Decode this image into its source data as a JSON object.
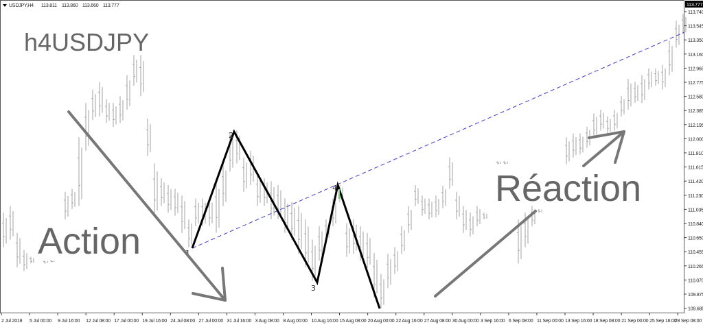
{
  "header": {
    "symbol": "USDJPY,H4",
    "open": "113.811",
    "high": "113.860",
    "low": "113.660",
    "close": "113.777"
  },
  "annotations": {
    "title": "h4USDJPY",
    "action": "Action",
    "reaction": "Réaction",
    "wave_labels": [
      "1",
      "2",
      "3",
      "4"
    ]
  },
  "colors": {
    "bars": "#a0a0a0",
    "zigzag": "#000000",
    "trendline": "#3a3acc",
    "arrows": "#777777",
    "price_tag": "#000000"
  },
  "chart_data": {
    "type": "bar",
    "title": "USDJPY,H4",
    "current_price": "113.777",
    "ylim": [
      109.685,
      113.777
    ],
    "y_ticks": [
      "113.740",
      "113.545",
      "113.350",
      "113.160",
      "112.965",
      "112.775",
      "112.580",
      "112.385",
      "112.195",
      "112.000",
      "111.810",
      "111.615",
      "111.420",
      "111.230",
      "111.035",
      "110.840",
      "110.650",
      "110.455",
      "110.265",
      "110.070",
      "109.875",
      "109.685"
    ],
    "x_ticks": [
      "2 Jul 2018",
      "5 Jul 00:00",
      "9 Jul 16:00",
      "12 Jul 08:00",
      "17 Jul 00:00",
      "19 Jul 16:00",
      "24 Jul 08:00",
      "27 Jul 00:00",
      "31 Jul 16:00",
      "3 Aug 08:00",
      "8 Aug 00:00",
      "10 Aug 16:00",
      "15 Aug 08:00",
      "20 Aug 00:00",
      "22 Aug 16:00",
      "27 Aug 08:00",
      "30 Aug 00:00",
      "3 Sep 16:00",
      "6 Sep 08:00",
      "11 Sep 00:00",
      "13 Sep 16:00",
      "18 Sep 08:00",
      "21 Sep 00:00",
      "25 Sep 16:00",
      "28 Sep 08:00"
    ],
    "bars_high_low": [
      [
        111.04,
        110.58
      ],
      [
        111.13,
        110.68
      ],
      [
        110.77,
        110.31
      ],
      [
        110.54,
        110.26
      ],
      [
        110.45,
        110.36
      ],
      null,
      [
        110.4,
        110.36
      ],
      [
        110.4,
        110.38
      ],
      null,
      [
        111.32,
        110.95
      ],
      [
        111.36,
        111.09
      ],
      [
        112.05,
        111.13
      ],
      [
        112.51,
        111.87
      ],
      [
        112.69,
        112.28
      ],
      [
        112.79,
        112.33
      ],
      [
        112.56,
        112.24
      ],
      [
        112.51,
        112.19
      ],
      [
        112.6,
        112.24
      ],
      [
        112.88,
        112.42
      ],
      [
        113.15,
        112.74
      ],
      [
        113.15,
        112.6
      ],
      [
        112.3,
        111.8
      ],
      [
        111.7,
        111.0
      ],
      [
        111.5,
        111.13
      ],
      [
        111.41,
        111.04
      ],
      [
        111.36,
        111.0
      ],
      [
        111.27,
        110.77
      ],
      [
        110.95,
        110.58
      ],
      [
        111.23,
        110.86
      ],
      [
        111.23,
        110.86
      ],
      [
        111.23,
        110.86
      ],
      [
        111.46,
        110.77
      ],
      [
        111.69,
        111.13
      ],
      [
        112.1,
        111.59
      ],
      [
        112.14,
        111.7
      ],
      [
        111.78,
        111.32
      ],
      [
        111.87,
        111.41
      ],
      [
        111.55,
        111.13
      ],
      [
        111.5,
        111.13
      ],
      [
        111.46,
        110.95
      ],
      [
        111.41,
        110.95
      ],
      [
        111.23,
        110.77
      ],
      [
        111.18,
        110.68
      ],
      [
        111.13,
        110.49
      ],
      [
        110.95,
        110.31
      ],
      [
        110.68,
        110.13
      ],
      [
        110.86,
        110.4
      ],
      [
        110.95,
        110.68
      ],
      [
        111.23,
        110.86
      ],
      [
        111.41,
        111.18
      ],
      [
        110.9,
        110.45
      ],
      [
        110.95,
        110.49
      ],
      [
        110.86,
        110.4
      ],
      [
        110.77,
        110.3
      ],
      [
        110.5,
        109.9
      ],
      [
        110.22,
        109.76
      ],
      [
        110.49,
        110.03
      ],
      [
        110.58,
        110.22
      ],
      [
        110.86,
        110.49
      ],
      [
        111.13,
        110.77
      ],
      [
        111.41,
        111.13
      ],
      [
        111.27,
        111.0
      ],
      [
        111.23,
        110.95
      ],
      [
        111.27,
        110.98
      ],
      [
        111.4,
        111.1
      ],
      [
        111.78,
        111.36
      ],
      [
        111.32,
        110.95
      ],
      [
        111.13,
        110.77
      ],
      [
        111.04,
        110.72
      ],
      [
        111.13,
        110.86
      ],
      [
        111.04,
        110.95
      ],
      null,
      [
        111.73,
        111.69
      ],
      [
        111.73,
        111.69
      ],
      null,
      [
        110.95,
        110.36
      ],
      [
        111.04,
        110.58
      ],
      [
        111.13,
        110.86
      ],
      [
        111.09,
        111.04
      ],
      null,
      null,
      null,
      [
        112.05,
        111.69
      ],
      [
        112.1,
        111.78
      ],
      [
        112.1,
        111.82
      ],
      [
        112.19,
        111.91
      ],
      [
        112.37,
        112.05
      ],
      [
        112.42,
        112.14
      ],
      [
        112.33,
        112.1
      ],
      [
        112.42,
        112.14
      ],
      [
        112.6,
        112.33
      ],
      [
        112.83,
        112.42
      ],
      [
        112.79,
        112.51
      ],
      [
        112.88,
        112.51
      ],
      [
        112.97,
        112.69
      ],
      [
        112.97,
        112.74
      ],
      [
        113.02,
        112.69
      ],
      [
        113.34,
        112.88
      ],
      [
        113.61,
        113.25
      ],
      [
        113.7,
        113.43
      ]
    ],
    "zigzag_prices": [
      110.57,
      112.13,
      110.11,
      111.41,
      109.76
    ],
    "grid": false
  }
}
